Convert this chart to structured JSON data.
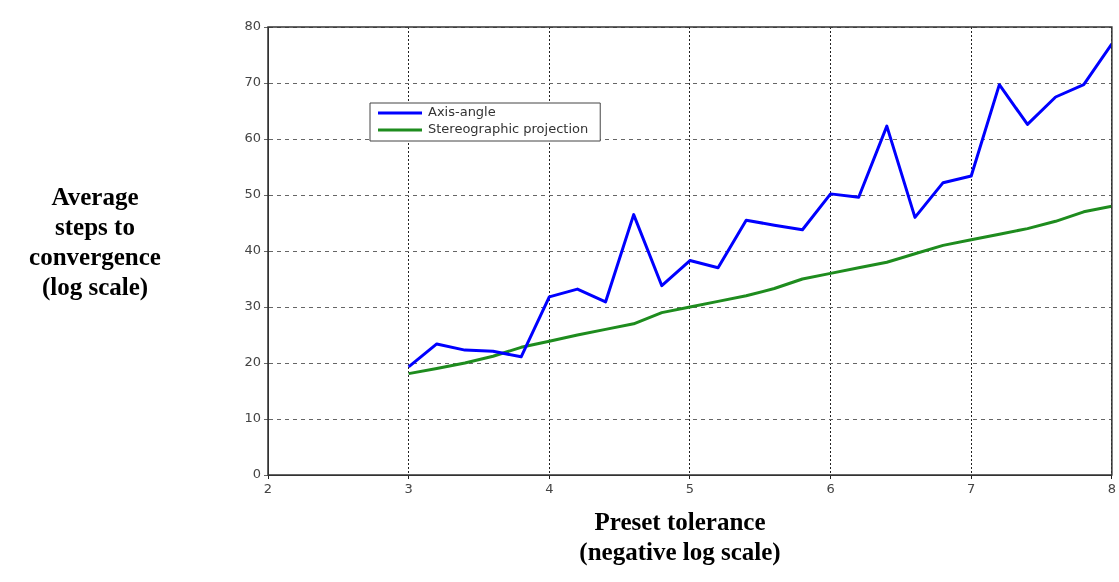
{
  "chart_data": {
    "type": "line",
    "xlabel": "Preset tolerance\n(negative log scale)",
    "ylabel": "Average\nsteps to\nconvergence\n(log scale)",
    "x": [
      3,
      3.2,
      3.4,
      3.6,
      3.8,
      4,
      4.2,
      4.4,
      4.6,
      4.8,
      5,
      5.2,
      5.4,
      5.6,
      5.8,
      6,
      6.2,
      6.4,
      6.6,
      6.8,
      7,
      7.2,
      7.4,
      7.6,
      7.8,
      8
    ],
    "series": [
      {
        "name": "Axis-angle",
        "color": "#0000ff",
        "values": [
          19.3,
          23.4,
          22.3,
          22.1,
          21.1,
          31.8,
          33.2,
          30.9,
          46.5,
          33.8,
          38.3,
          37,
          45.5,
          44.6,
          43.8,
          50.2,
          49.6,
          62.3,
          46,
          52.2,
          53.4,
          69.7,
          62.6,
          67.5,
          69.7,
          77
        ]
      },
      {
        "name": "Stereographic projection",
        "color": "#1e8c1e",
        "values": [
          18.1,
          19,
          20,
          21.2,
          22.8,
          23.9,
          25,
          26,
          27,
          29,
          30,
          31,
          32,
          33.3,
          35,
          36,
          37,
          38,
          39.5,
          41,
          42,
          43,
          44,
          45.3,
          47,
          48
        ]
      }
    ],
    "xlim": [
      2,
      8
    ],
    "xticks": [
      2,
      3,
      4,
      5,
      6,
      7,
      8
    ],
    "ylim": [
      0,
      80
    ],
    "yticks": [
      0,
      10,
      20,
      30,
      40,
      50,
      60,
      70,
      80
    ],
    "grid": true,
    "legend": "top left",
    "marker": "none",
    "line_style": "solid"
  }
}
